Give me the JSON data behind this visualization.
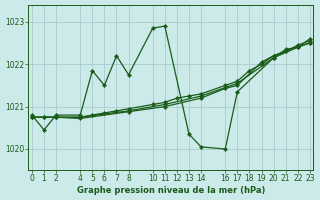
{
  "title": "Graphe pression niveau de la mer (hPa)",
  "bg_color": "#cceaea",
  "grid_color": "#aacccc",
  "line_color": "#1a5c1a",
  "ylim": [
    1019.5,
    1023.4
  ],
  "xlim": [
    -0.3,
    23.3
  ],
  "yticks": [
    1020,
    1021,
    1022,
    1023
  ],
  "xticks": [
    0,
    1,
    2,
    4,
    5,
    6,
    7,
    8,
    10,
    11,
    12,
    13,
    14,
    16,
    17,
    18,
    19,
    20,
    21,
    22,
    23
  ],
  "series": [
    {
      "x": [
        0,
        1,
        2,
        4,
        5,
        6,
        7,
        8,
        10,
        11,
        13,
        14,
        16,
        17,
        20,
        21,
        22,
        23
      ],
      "y": [
        1020.8,
        1020.45,
        1020.8,
        1020.8,
        1021.85,
        1021.5,
        1022.2,
        1021.75,
        1022.85,
        1022.9,
        1020.35,
        1020.05,
        1020.0,
        1021.35,
        1022.15,
        1022.35,
        1022.4,
        1022.6
      ]
    },
    {
      "x": [
        0,
        1,
        2,
        4,
        5,
        6,
        7,
        8,
        10,
        11,
        12,
        13,
        14,
        16,
        17,
        18,
        19,
        20,
        21,
        22,
        23
      ],
      "y": [
        1020.75,
        1020.75,
        1020.75,
        1020.75,
        1020.8,
        1020.85,
        1020.9,
        1020.95,
        1021.05,
        1021.1,
        1021.2,
        1021.25,
        1021.3,
        1021.5,
        1021.6,
        1021.85,
        1022.0,
        1022.2,
        1022.3,
        1022.45,
        1022.55
      ]
    },
    {
      "x": [
        0,
        1,
        2,
        4,
        8,
        11,
        14,
        17,
        20,
        22,
        23
      ],
      "y": [
        1020.75,
        1020.75,
        1020.75,
        1020.75,
        1020.9,
        1021.05,
        1021.25,
        1021.55,
        1022.15,
        1022.4,
        1022.5
      ]
    },
    {
      "x": [
        0,
        2,
        4,
        8,
        11,
        14,
        16,
        17,
        19,
        20,
        22,
        23
      ],
      "y": [
        1020.75,
        1020.75,
        1020.72,
        1020.88,
        1021.0,
        1021.2,
        1021.43,
        1021.5,
        1022.05,
        1022.2,
        1022.42,
        1022.5
      ]
    }
  ]
}
